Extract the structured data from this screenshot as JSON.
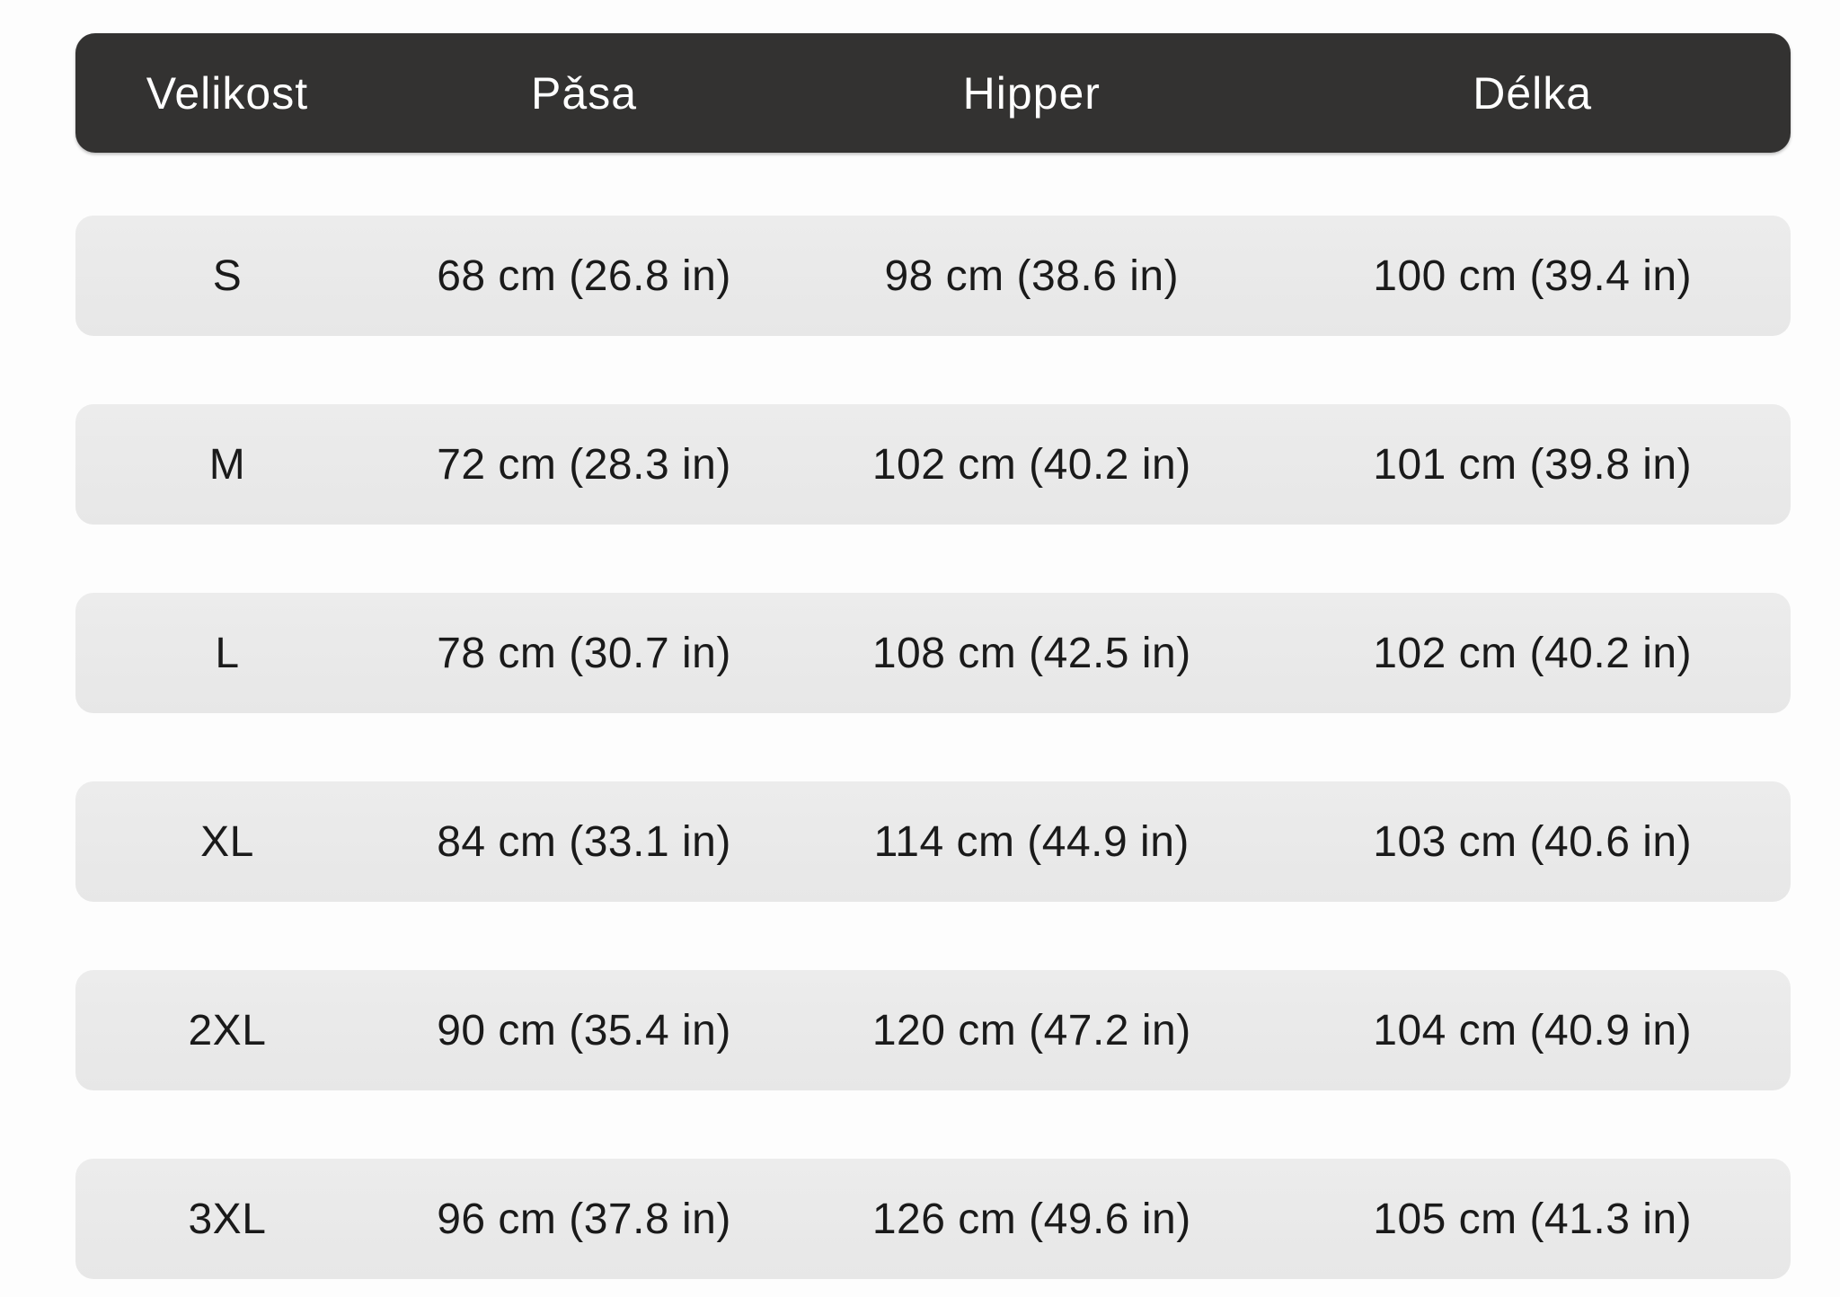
{
  "chart_data": {
    "type": "table",
    "title": "",
    "columns": [
      {
        "key": "size",
        "label": "Velikost"
      },
      {
        "key": "waist",
        "label": "Pǎsa"
      },
      {
        "key": "hips",
        "label": "Hipper"
      },
      {
        "key": "length",
        "label": "Délka"
      }
    ],
    "rows": [
      {
        "size": "S",
        "waist": "68 cm (26.8 in)",
        "hips": "98 cm (38.6 in)",
        "length": "100 cm (39.4 in)"
      },
      {
        "size": "M",
        "waist": "72 cm (28.3 in)",
        "hips": "102 cm (40.2 in)",
        "length": "101 cm (39.8 in)"
      },
      {
        "size": "L",
        "waist": "78 cm (30.7 in)",
        "hips": "108 cm (42.5 in)",
        "length": "102 cm (40.2 in)"
      },
      {
        "size": "XL",
        "waist": "84 cm (33.1 in)",
        "hips": "114 cm (44.9 in)",
        "length": "103 cm (40.6 in)"
      },
      {
        "size": "2XL",
        "waist": "90 cm (35.4 in)",
        "hips": "120 cm (47.2 in)",
        "length": "104 cm (40.9 in)"
      },
      {
        "size": "3XL",
        "waist": "96 cm (37.8 in)",
        "hips": "126 cm (49.6 in)",
        "length": "105 cm (41.3 in)"
      }
    ]
  },
  "colors": {
    "header_bg": "#333231",
    "header_text": "#ffffff",
    "row_bg": "#e9e9e9",
    "row_text": "#1a1a1a",
    "page_bg": "#fdfdfd"
  }
}
